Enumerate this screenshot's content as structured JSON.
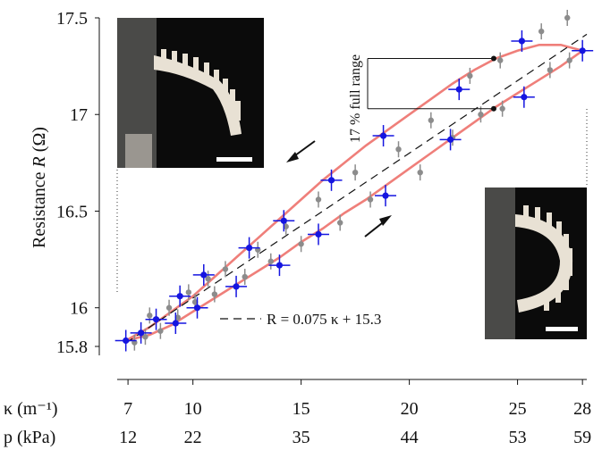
{
  "chart_data": {
    "type": "scatter",
    "title": "",
    "ylabel": "Resistance",
    "ylabel_symbol": "R",
    "ylabel_unit": "(Ω)",
    "ylim": [
      15.8,
      17.5
    ],
    "xlim": [
      6.5,
      28.2
    ],
    "yticks": [
      "17.5",
      "17",
      "16.5",
      "16",
      "15.8"
    ],
    "ytick_values": [
      17.5,
      17.0,
      16.5,
      16.0,
      15.8
    ],
    "kappa_label": "κ (m⁻¹)",
    "pressure_label": "p (kPa)",
    "kappa_ticks": [
      "7",
      "10",
      "15",
      "20",
      "25",
      "28"
    ],
    "kappa_tick_values": [
      7,
      10,
      15,
      20,
      25,
      28
    ],
    "pressure_ticks": [
      "12",
      "22",
      "35",
      "44",
      "53",
      "59"
    ],
    "fit_equation": "R = 0.075 κ + 15.3",
    "fit": {
      "slope": 0.075,
      "intercept": 15.3
    },
    "range_annotation": "17 % full range",
    "series": [
      {
        "color": "#1515e0",
        "x": [
          6.9,
          7.6,
          8.3,
          9.2,
          9.4,
          10.2,
          10.5,
          12.0,
          12.6,
          14.0,
          14.2,
          15.8,
          16.4,
          18.9,
          18.8,
          21.9,
          22.3,
          25.3,
          25.2,
          28.0
        ],
        "y": [
          15.83,
          15.87,
          15.94,
          15.92,
          16.06,
          16.0,
          16.17,
          16.11,
          16.31,
          16.22,
          16.45,
          16.38,
          16.66,
          16.58,
          16.89,
          16.87,
          17.13,
          17.09,
          17.38,
          17.33
        ]
      },
      {
        "color": "#8c8c8c",
        "x": [
          7.3,
          7.8,
          8.0,
          8.5,
          8.9,
          9.3,
          9.8,
          10.1,
          10.7,
          11.0,
          11.5,
          12.4,
          13.0,
          13.6,
          14.3,
          15.0,
          15.8,
          16.8,
          17.5,
          18.2,
          19.5,
          20.5,
          21.0,
          22.0,
          22.8,
          23.3,
          24.2,
          24.3,
          26.1,
          26.5,
          27.3,
          27.4
        ],
        "y": [
          15.82,
          15.85,
          15.96,
          15.88,
          16.0,
          15.95,
          16.08,
          16.03,
          16.15,
          16.07,
          16.2,
          16.16,
          16.3,
          16.24,
          16.42,
          16.33,
          16.56,
          16.44,
          16.7,
          16.56,
          16.82,
          16.7,
          16.97,
          16.88,
          17.2,
          17.0,
          17.28,
          17.03,
          17.43,
          17.23,
          17.5,
          17.28
        ]
      }
    ],
    "curves": [
      {
        "color": "#ef7f7a",
        "x": [
          6.9,
          8.0,
          9.0,
          10.0,
          11.0,
          12.0,
          13.0,
          14.0,
          15.0,
          16.0,
          17.0,
          18.0,
          19.0,
          20.0,
          21.0,
          22.0,
          23.0,
          24.0,
          25.0,
          26.0,
          27.0,
          28.0
        ],
        "y": [
          15.83,
          15.9,
          15.98,
          16.06,
          16.16,
          16.26,
          16.36,
          16.46,
          16.56,
          16.66,
          16.75,
          16.84,
          16.92,
          17.0,
          17.08,
          17.16,
          17.23,
          17.29,
          17.33,
          17.36,
          17.36,
          17.33
        ]
      },
      {
        "color": "#ef7f7a",
        "x": [
          6.9,
          8.0,
          9.0,
          10.0,
          11.0,
          12.0,
          13.0,
          14.0,
          15.0,
          16.0,
          17.0,
          18.0,
          19.0,
          20.0,
          21.0,
          22.0,
          23.0,
          24.0,
          25.0,
          26.0,
          27.0,
          28.0
        ],
        "y": [
          15.83,
          15.86,
          15.91,
          15.98,
          16.05,
          16.12,
          16.19,
          16.26,
          16.34,
          16.41,
          16.49,
          16.56,
          16.64,
          16.72,
          16.8,
          16.88,
          16.96,
          17.04,
          17.11,
          17.18,
          17.25,
          17.33
        ]
      }
    ],
    "range_markers": {
      "kappa": 23.9,
      "upper": 17.29,
      "lower": 17.03
    },
    "grid": false,
    "legend": "none"
  },
  "colors": {
    "blue": "#1515e0",
    "gray": "#8c8c8c",
    "red": "#ef7f7a",
    "photo_bg": "#0b0b0b",
    "actuator": "#e8e1d4"
  }
}
